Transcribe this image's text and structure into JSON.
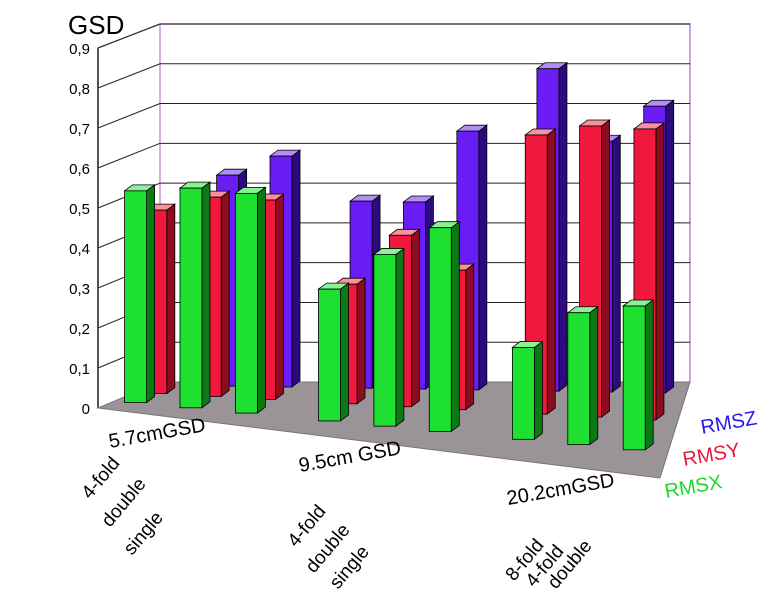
{
  "chart_data": {
    "type": "bar",
    "title": "GSD",
    "xlabel": "",
    "ylabel": "GSD",
    "ylim": [
      0,
      0.9
    ],
    "yticks": [
      "0",
      "0,1",
      "0,2",
      "0,3",
      "0,4",
      "0,5",
      "0,6",
      "0,7",
      "0,8",
      "0,9"
    ],
    "grid": true,
    "groups": [
      {
        "label": "5.7cmGSD",
        "categories": [
          "4-fold",
          "double",
          "single"
        ],
        "series": [
          {
            "name": "RMSX",
            "values": [
              0.53,
              0.55,
              0.55
            ]
          },
          {
            "name": "RMSY",
            "values": [
              0.46,
              0.5,
              0.5
            ]
          },
          {
            "name": "RMSZ",
            "values": [
              null,
              0.53,
              0.58
            ]
          }
        ]
      },
      {
        "label": "9.5cm GSD",
        "categories": [
          "4-fold",
          "double",
          "single"
        ],
        "series": [
          {
            "name": "RMSX",
            "values": [
              0.33,
              0.43,
              0.51
            ]
          },
          {
            "name": "RMSY",
            "values": [
              0.3,
              0.43,
              0.35
            ]
          },
          {
            "name": "RMSZ",
            "values": [
              0.47,
              0.47,
              0.65
            ]
          }
        ]
      },
      {
        "label": "20.2cmGSD",
        "categories": [
          "8-fold",
          "4-fold",
          "double"
        ],
        "series": [
          {
            "name": "RMSX",
            "values": [
              0.23,
              0.33,
              0.36
            ]
          },
          {
            "name": "RMSY",
            "values": [
              0.7,
              0.73,
              0.73
            ]
          },
          {
            "name": "RMSZ",
            "values": [
              0.81,
              0.63,
              0.72
            ]
          }
        ]
      }
    ],
    "legend": {
      "position": "bottom-right",
      "items": [
        {
          "label": "RMSZ",
          "color": "#2418f0"
        },
        {
          "label": "RMSY",
          "color": "#e8183a"
        },
        {
          "label": "RMSX",
          "color": "#1ed82a"
        }
      ]
    }
  },
  "colors": {
    "RMSX": {
      "front": "#1ee030",
      "side": "#0c7a14",
      "top": "#8af292"
    },
    "RMSY": {
      "front": "#f0183c",
      "side": "#8c0c20",
      "top": "#f8909e"
    },
    "RMSZ": {
      "front": "#6a1cf4",
      "side": "#2e0a80",
      "top": "#b48cf8"
    },
    "floor": "#9a9498",
    "floor_edge": "#7a747a",
    "frame": "#b87ad8",
    "grid": "#222222"
  }
}
